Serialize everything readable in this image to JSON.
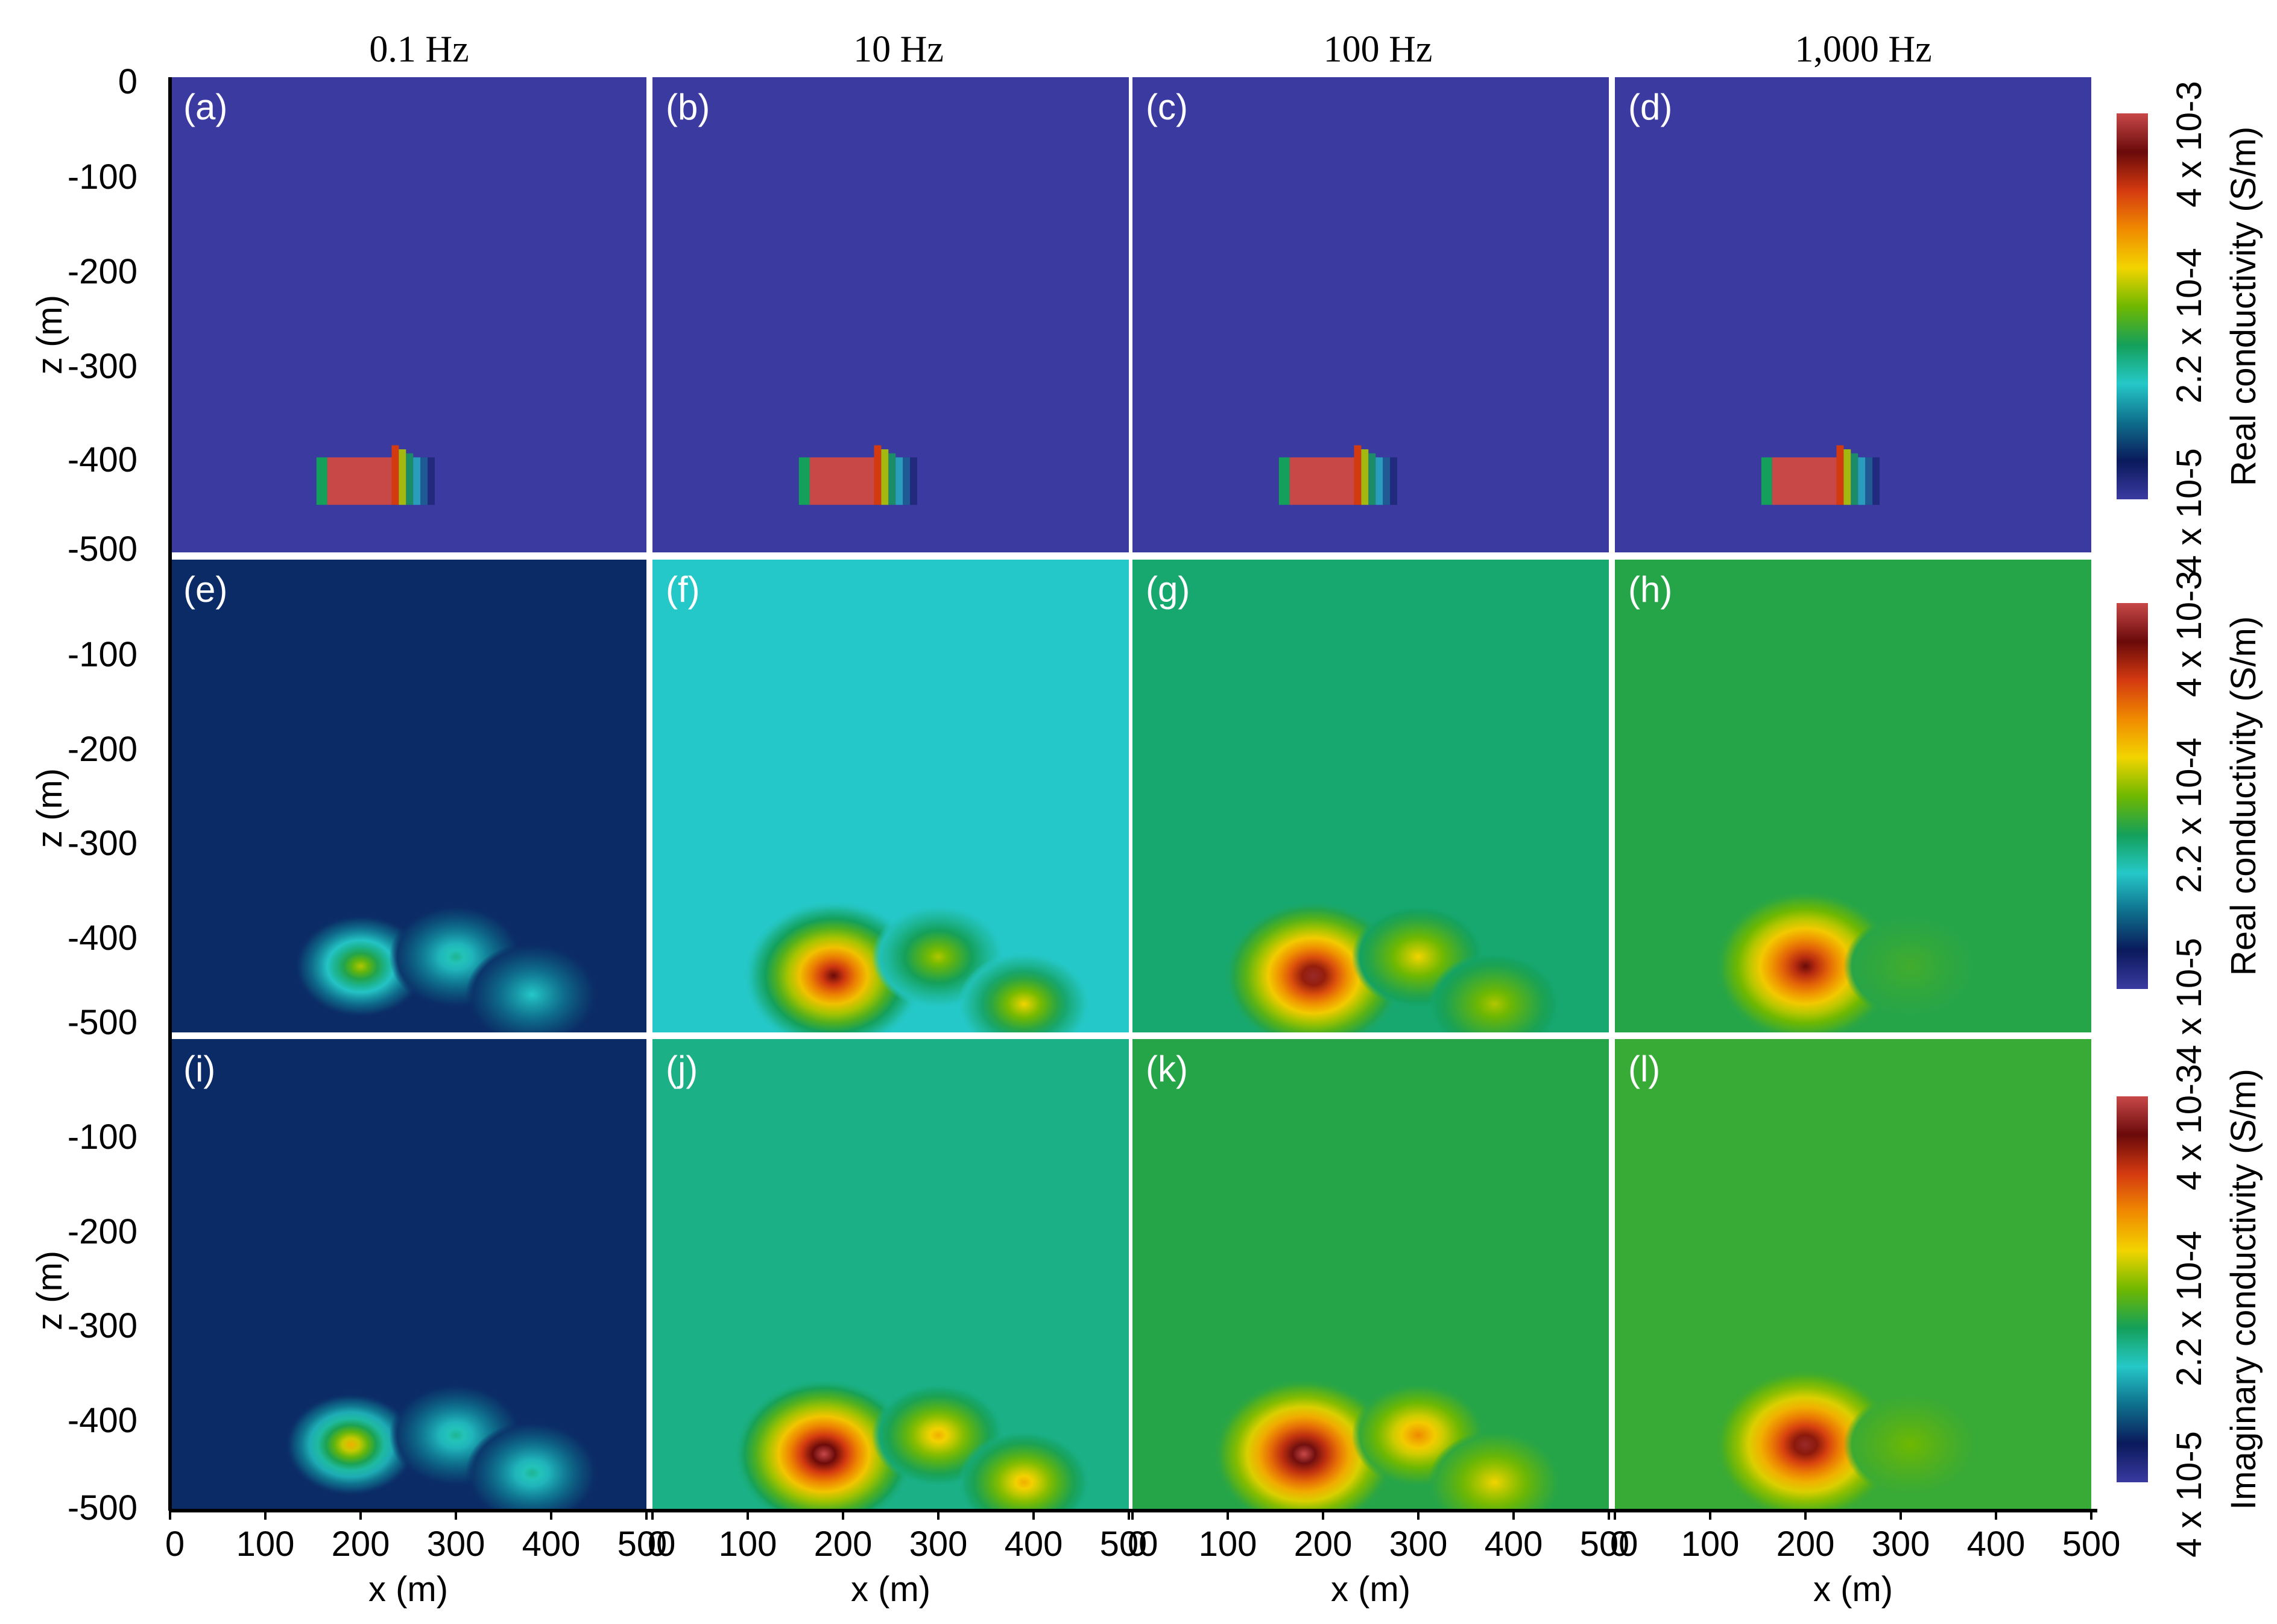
{
  "column_titles": [
    "0.1 Hz",
    "10 Hz",
    "100 Hz",
    "1,000 Hz"
  ],
  "panel_labels": [
    [
      "(a)",
      "(b)",
      "(c)",
      "(d)"
    ],
    [
      "(e)",
      "(f)",
      "(g)",
      "(h)"
    ],
    [
      "(i)",
      "(j)",
      "(k)",
      "(l)"
    ]
  ],
  "axes": {
    "z_label": "z (m)",
    "x_label": "x (m)",
    "z_ticks": [
      "0",
      "-100",
      "-200",
      "-300",
      "-400",
      "-500"
    ],
    "z_ticks_lower": [
      "-100",
      "-200",
      "-300",
      "-400",
      "-500"
    ],
    "x_ticks": [
      "0",
      "100",
      "200",
      "300",
      "400",
      "500"
    ]
  },
  "colorbars": [
    {
      "label": "Real conductivity (S/m)",
      "ticks": [
        "4 x 10-5",
        "2.2 x 10-4",
        "4 x 10-3"
      ]
    },
    {
      "label": "Real conductivity (S/m)",
      "ticks": [
        "4 x 10-5",
        "2.2 x 10-4",
        "4 x 10-3"
      ]
    },
    {
      "label": "Imaginary conductivity (S/m)",
      "ticks": [
        "4 x 10-5",
        "2.2 x 10-4",
        "4 x 10-3"
      ]
    }
  ],
  "colormap": [
    "#3a3aa0",
    "#0a1a5c",
    "#0e6f8c",
    "#25c8c8",
    "#14a05a",
    "#6fb800",
    "#f2d400",
    "#f08a00",
    "#d43a10",
    "#6a0a0a",
    "#c84848"
  ],
  "chart_data": {
    "type": "heatmap",
    "xlim": [
      0,
      500
    ],
    "zlim": [
      -500,
      0
    ],
    "rows": [
      {
        "quantity": "Real conductivity (S/m)",
        "panels": [
          {
            "background": 0.0,
            "anomaly": {
              "x": [
                160,
                250
              ],
              "z": [
                -450,
                -400
              ],
              "peak": 1.0
            }
          },
          {
            "background": 0.0,
            "anomaly": {
              "x": [
                160,
                250
              ],
              "z": [
                -450,
                -400
              ],
              "peak": 1.0
            }
          },
          {
            "background": 0.0,
            "anomaly": {
              "x": [
                160,
                250
              ],
              "z": [
                -450,
                -400
              ],
              "peak": 1.0
            }
          },
          {
            "background": 0.0,
            "anomaly": {
              "x": [
                160,
                250
              ],
              "z": [
                -450,
                -400
              ],
              "peak": 1.0
            }
          }
        ]
      },
      {
        "quantity": "Real conductivity (S/m)",
        "panels": [
          {
            "background": 0.12,
            "blobs": [
              {
                "x": 200,
                "z": -430,
                "peak": 0.55
              },
              {
                "x": 300,
                "z": -420,
                "peak": 0.35
              },
              {
                "x": 380,
                "z": -460,
                "peak": 0.3
              }
            ]
          },
          {
            "background": 0.3,
            "blobs": [
              {
                "x": 190,
                "z": -440,
                "peak": 0.9
              },
              {
                "x": 300,
                "z": -420,
                "peak": 0.55
              },
              {
                "x": 390,
                "z": -470,
                "peak": 0.6
              }
            ]
          },
          {
            "background": 0.38,
            "blobs": [
              {
                "x": 190,
                "z": -440,
                "peak": 0.95
              },
              {
                "x": 300,
                "z": -420,
                "peak": 0.6
              },
              {
                "x": 380,
                "z": -470,
                "peak": 0.55
              }
            ]
          },
          {
            "background": 0.42,
            "blobs": [
              {
                "x": 200,
                "z": -430,
                "peak": 0.9
              },
              {
                "x": 310,
                "z": -430,
                "peak": 0.45
              }
            ]
          }
        ]
      },
      {
        "quantity": "Imaginary conductivity (S/m)",
        "panels": [
          {
            "background": 0.12,
            "blobs": [
              {
                "x": 190,
                "z": -430,
                "peak": 0.65
              },
              {
                "x": 300,
                "z": -420,
                "peak": 0.35
              },
              {
                "x": 380,
                "z": -460,
                "peak": 0.35
              }
            ]
          },
          {
            "background": 0.36,
            "blobs": [
              {
                "x": 180,
                "z": -440,
                "peak": 1.0
              },
              {
                "x": 300,
                "z": -420,
                "peak": 0.65
              },
              {
                "x": 390,
                "z": -470,
                "peak": 0.65
              }
            ]
          },
          {
            "background": 0.42,
            "blobs": [
              {
                "x": 180,
                "z": -440,
                "peak": 1.0
              },
              {
                "x": 300,
                "z": -420,
                "peak": 0.7
              },
              {
                "x": 380,
                "z": -470,
                "peak": 0.6
              }
            ]
          },
          {
            "background": 0.44,
            "blobs": [
              {
                "x": 200,
                "z": -430,
                "peak": 0.95
              },
              {
                "x": 310,
                "z": -430,
                "peak": 0.5
              }
            ]
          }
        ]
      }
    ]
  }
}
